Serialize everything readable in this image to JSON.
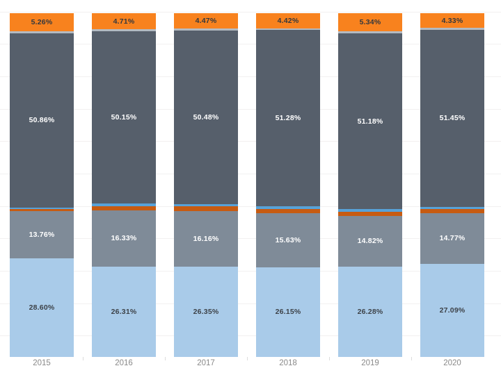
{
  "chart_data": {
    "type": "bar",
    "stacked": true,
    "percent_stacked": true,
    "title": "",
    "xlabel": "",
    "ylabel": "",
    "ylim": [
      0,
      100
    ],
    "grid": true,
    "legend": "none",
    "axis_label_color": "#898989",
    "categories": [
      "2015",
      "2016",
      "2017",
      "2018",
      "2019",
      "2020"
    ],
    "series": [
      {
        "name": "light-blue-bottom",
        "color": "#A9CBE9",
        "label_color": "#3d4248",
        "values": [
          28.6,
          26.31,
          26.35,
          26.15,
          26.28,
          27.09
        ],
        "labels": [
          "28.60%",
          "26.31%",
          "26.35%",
          "26.15%",
          "26.28%",
          "27.09%"
        ]
      },
      {
        "name": "medium-gray",
        "color": "#7F8B98",
        "label_color": "#ffffff",
        "values": [
          13.76,
          16.33,
          16.16,
          15.63,
          14.82,
          14.77
        ],
        "labels": [
          "13.76%",
          "16.33%",
          "16.16%",
          "15.63%",
          "14.82%",
          "14.77%"
        ]
      },
      {
        "name": "burnt-orange-strip",
        "color": "#C75B11",
        "estimated": true,
        "values": [
          0.6,
          1.3,
          1.34,
          1.32,
          1.2,
          1.2
        ]
      },
      {
        "name": "steel-blue-strip",
        "color": "#57A2D8",
        "estimated": true,
        "values": [
          0.42,
          0.7,
          0.7,
          0.7,
          0.68,
          0.66
        ]
      },
      {
        "name": "dark-slate",
        "color": "#565F6B",
        "label_color": "#ffffff",
        "values": [
          50.86,
          50.15,
          50.48,
          51.28,
          51.18,
          51.45
        ],
        "labels": [
          "50.86%",
          "50.15%",
          "50.48%",
          "51.28%",
          "51.18%",
          "51.45%"
        ]
      },
      {
        "name": "light-gray-strip",
        "color": "#B3BAC1",
        "estimated": true,
        "values": [
          0.5,
          0.5,
          0.5,
          0.5,
          0.5,
          0.5
        ]
      },
      {
        "name": "orange-top",
        "color": "#F8821E",
        "label_color": "#33383e",
        "values": [
          5.26,
          4.71,
          4.47,
          4.42,
          5.34,
          4.33
        ],
        "labels": [
          "5.26%",
          "4.71%",
          "4.47%",
          "4.42%",
          "5.34%",
          "4.33%"
        ]
      }
    ]
  }
}
